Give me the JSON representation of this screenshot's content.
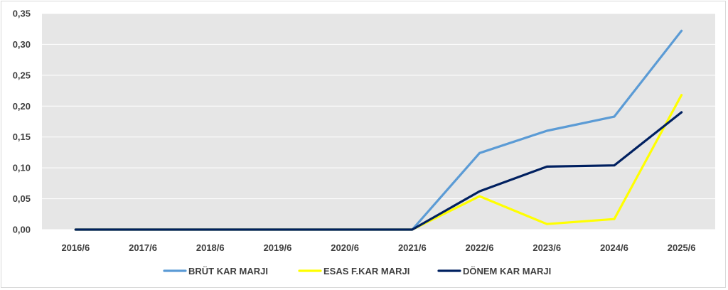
{
  "chart_data": {
    "type": "line",
    "title": "",
    "xlabel": "",
    "ylabel": "",
    "categories": [
      "2016/6",
      "2017/6",
      "2018/6",
      "2019/6",
      "2020/6",
      "2021/6",
      "2022/6",
      "2023/6",
      "2024/6",
      "2025/6"
    ],
    "ylim": [
      0,
      0.35
    ],
    "yticks": [
      "0,00",
      "0,05",
      "0,10",
      "0,15",
      "0,20",
      "0,25",
      "0,30",
      "0,35"
    ],
    "grid": true,
    "legend_position": "bottom",
    "plot_background": "#e6e6e6",
    "series": [
      {
        "name": "BRÜT KAR MARJI",
        "color": "#5b9bd5",
        "values": [
          0,
          0,
          0,
          0,
          0,
          0,
          0.124,
          0.16,
          0.183,
          0.322
        ]
      },
      {
        "name": "ESAS F.KAR MARJI",
        "color": "#ffff00",
        "values": [
          0,
          0,
          0,
          0,
          0,
          0,
          0.054,
          0.009,
          0.017,
          0.218
        ]
      },
      {
        "name": "DÖNEM KAR MARJI",
        "color": "#002060",
        "values": [
          0,
          0,
          0,
          0,
          0,
          0,
          0.062,
          0.102,
          0.104,
          0.19
        ]
      }
    ]
  }
}
